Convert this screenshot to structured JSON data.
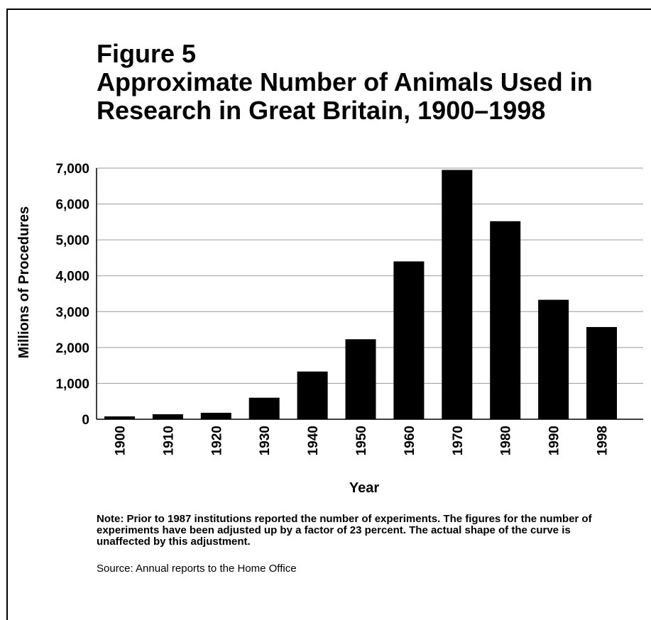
{
  "chart_data": {
    "type": "bar",
    "title": "Figure 5\nApproximate Number of Animals Used in Research in Great Britain, 1900–1998",
    "xlabel": "Year",
    "ylabel": "Millions of Procedures",
    "categories": [
      "1900",
      "1910",
      "1920",
      "1930",
      "1940",
      "1950",
      "1960",
      "1970",
      "1980",
      "1990",
      "1998"
    ],
    "values": [
      80,
      140,
      180,
      600,
      1330,
      2230,
      4400,
      6950,
      5520,
      3330,
      2570
    ],
    "ylim": [
      0,
      7000
    ],
    "yticks": [
      0,
      1000,
      2000,
      3000,
      4000,
      5000,
      6000,
      7000
    ],
    "ytick_labels": [
      "0",
      "1,000",
      "2,000",
      "3,000",
      "4,000",
      "5,000",
      "6,000",
      "7,000"
    ],
    "grid": true,
    "bar_color": "#000000",
    "grid_color": "#9a9a9a"
  },
  "note": "Note: Prior to 1987 institutions reported the number of experiments. The figures for the number of experiments have been adjusted up by a factor of 23 percent. The actual shape of the curve is unaffected by this adjustment.",
  "source": "Source: Annual reports to the Home Office"
}
